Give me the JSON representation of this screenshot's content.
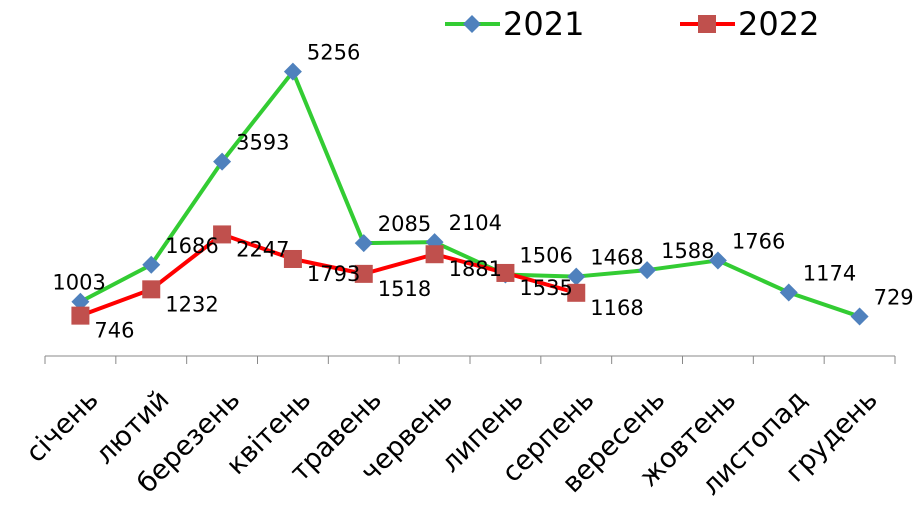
{
  "chart_data": {
    "type": "line",
    "categories": [
      "січень",
      "лютий",
      "березень",
      "квітень",
      "травень",
      "червень",
      "липень",
      "серпень",
      "вересень",
      "жовтень",
      "листопад",
      "грудень"
    ],
    "series": [
      {
        "name": "2021",
        "color": "#33cc33",
        "marker_color": "#4f81bd",
        "marker": "diamond",
        "values": [
          1003,
          1686,
          3593,
          5256,
          2085,
          2104,
          1506,
          1468,
          1588,
          1766,
          1174,
          729
        ]
      },
      {
        "name": "2022",
        "color": "#ff0000",
        "marker_color": "#c0504d",
        "marker": "square",
        "values": [
          746,
          1232,
          2247,
          1793,
          1518,
          1881,
          1535,
          1168,
          null,
          null,
          null,
          null
        ]
      }
    ],
    "ylim": [
      0,
      5600
    ]
  }
}
